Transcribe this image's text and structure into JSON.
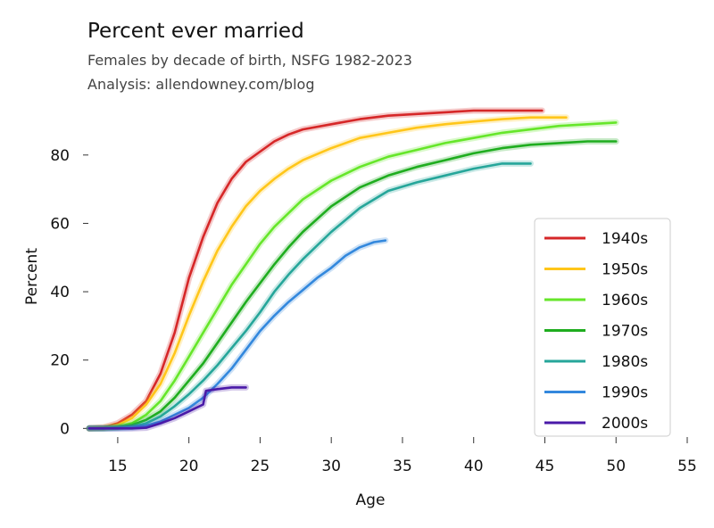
{
  "header": {
    "title": "Percent ever married",
    "subtitle": "Females by decade of birth, NSFG 1982-2023",
    "credit": "Analysis: allendowney.com/blog"
  },
  "chart_data": {
    "type": "line",
    "title": "Percent ever married",
    "subtitle": "Females by decade of birth, NSFG 1982-2023",
    "xlabel": "Age",
    "ylabel": "Percent",
    "xlim": [
      13,
      55
    ],
    "ylim": [
      -2,
      93
    ],
    "xticks": [
      15,
      20,
      25,
      30,
      35,
      40,
      45,
      50,
      55
    ],
    "yticks": [
      0,
      20,
      40,
      60,
      80
    ],
    "grid": false,
    "legend_position": "lower-right",
    "series": [
      {
        "name": "1940s",
        "color": "#d62728",
        "x": [
          13,
          14,
          15,
          16,
          17,
          18,
          19,
          20,
          21,
          22,
          23,
          24,
          25,
          26,
          27,
          28,
          30,
          32,
          34,
          36,
          38,
          40,
          42,
          44.8
        ],
        "y": [
          0,
          0.3,
          1.5,
          4,
          8,
          16,
          28,
          44,
          56,
          66,
          73,
          78,
          81,
          84,
          86,
          87.5,
          89,
          90.5,
          91.5,
          92,
          92.5,
          93,
          93,
          93
        ]
      },
      {
        "name": "1950s",
        "color": "#ffc61a",
        "x": [
          13,
          14,
          15,
          16,
          17,
          18,
          19,
          20,
          21,
          22,
          23,
          24,
          25,
          26,
          27,
          28,
          30,
          32,
          34,
          36,
          38,
          40,
          42,
          44,
          46.5
        ],
        "y": [
          0,
          0.2,
          1,
          3,
          7,
          13,
          22,
          33,
          43,
          52,
          59,
          65,
          69.5,
          73,
          76,
          78.5,
          82,
          85,
          86.5,
          88,
          89,
          89.8,
          90.5,
          91,
          91
        ]
      },
      {
        "name": "1960s",
        "color": "#66e62a",
        "x": [
          13,
          14,
          15,
          16,
          17,
          18,
          19,
          20,
          21,
          22,
          23,
          24,
          25,
          26,
          27,
          28,
          30,
          32,
          34,
          36,
          38,
          40,
          42,
          44,
          46,
          48,
          50
        ],
        "y": [
          0,
          0.1,
          0.5,
          1.5,
          4,
          8,
          14,
          21,
          28,
          35,
          42,
          48,
          54,
          59,
          63,
          67,
          72.5,
          76.5,
          79.5,
          81.5,
          83.5,
          85,
          86.5,
          87.5,
          88.5,
          89,
          89.5
        ]
      },
      {
        "name": "1970s",
        "color": "#1fad1f",
        "x": [
          13,
          14,
          15,
          16,
          17,
          18,
          19,
          20,
          21,
          22,
          23,
          24,
          25,
          26,
          27,
          28,
          30,
          32,
          34,
          36,
          38,
          40,
          42,
          44,
          46,
          48,
          50
        ],
        "y": [
          0,
          0,
          0.3,
          1,
          2.5,
          5,
          9,
          14,
          19,
          25,
          31,
          37,
          42.5,
          48,
          53,
          57.5,
          65,
          70.5,
          74,
          76.5,
          78.5,
          80.5,
          82,
          83,
          83.5,
          84,
          84
        ]
      },
      {
        "name": "1980s",
        "color": "#26a69a",
        "x": [
          13,
          14,
          15,
          16,
          17,
          18,
          19,
          20,
          21,
          22,
          23,
          24,
          25,
          26,
          27,
          28,
          30,
          32,
          34,
          36,
          38,
          40,
          42,
          44
        ],
        "y": [
          0,
          0,
          0.2,
          0.5,
          1.5,
          3.5,
          6.5,
          10,
          14,
          18.5,
          23.5,
          28.5,
          34,
          40,
          45,
          49.5,
          57.5,
          64.5,
          69.5,
          72,
          74,
          76,
          77.5,
          77.5
        ]
      },
      {
        "name": "1990s",
        "color": "#3388dd",
        "x": [
          13,
          14,
          15,
          16,
          17,
          18,
          19,
          20,
          21,
          22,
          23,
          24,
          25,
          26,
          27,
          28,
          29,
          30,
          31,
          32,
          33,
          33.8
        ],
        "y": [
          0,
          0,
          0,
          0.2,
          0.8,
          2,
          4,
          6,
          9,
          13,
          17.5,
          23,
          28.5,
          33,
          37,
          40.5,
          44,
          47,
          50.5,
          53,
          54.5,
          55
        ]
      },
      {
        "name": "2000s",
        "color": "#4a1aa8",
        "x": [
          13,
          15,
          16,
          17,
          18,
          19,
          20,
          21,
          21.2,
          22,
          23,
          24
        ],
        "y": [
          0,
          0,
          0,
          0.2,
          1.5,
          3,
          5,
          7,
          11,
          11.5,
          12,
          12
        ]
      }
    ]
  }
}
